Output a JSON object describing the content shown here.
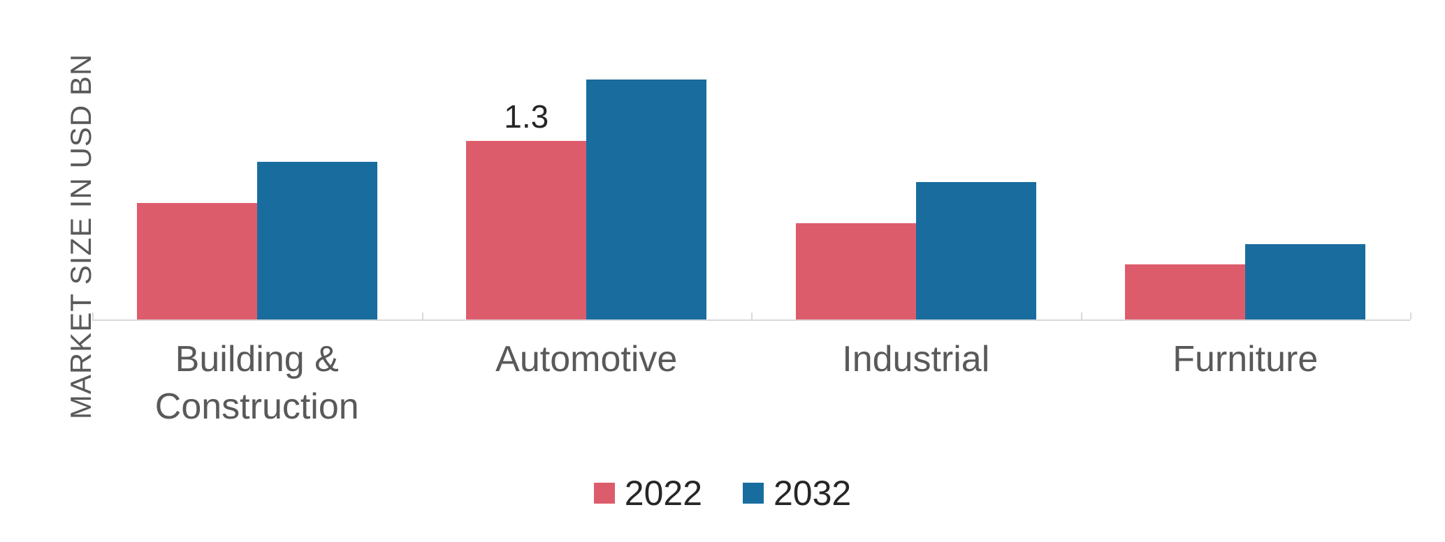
{
  "chart_data": {
    "type": "bar",
    "title": "",
    "xlabel": "",
    "ylabel": "MARKET SIZE IN USD BN",
    "categories": [
      "Building & Construction",
      "Automotive",
      "Industrial",
      "Furniture"
    ],
    "series": [
      {
        "name": "2022",
        "color": "#dd5c6c",
        "values": [
          0.85,
          1.3,
          0.7,
          0.4
        ]
      },
      {
        "name": "2032",
        "color": "#186d9e",
        "values": [
          1.15,
          1.75,
          1.0,
          0.55
        ]
      }
    ],
    "data_labels": [
      {
        "series": "2022",
        "category": "Automotive",
        "text": "1.3"
      }
    ],
    "ylim": [
      0,
      1.9
    ],
    "grid": false,
    "legend_position": "bottom",
    "axis_color": "#d9d9d9",
    "text_color": "#595959"
  }
}
